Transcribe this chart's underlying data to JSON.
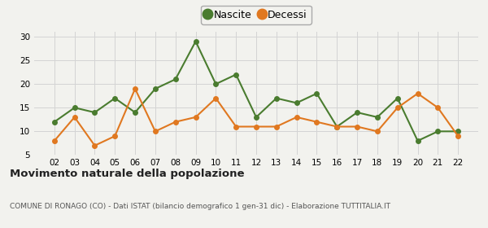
{
  "x_labels": [
    "02",
    "03",
    "04",
    "05",
    "06",
    "07",
    "08",
    "09",
    "10",
    "11",
    "12",
    "13",
    "14",
    "15",
    "16",
    "17",
    "18",
    "19",
    "20",
    "21",
    "22"
  ],
  "nascite": [
    12,
    15,
    14,
    17,
    14,
    19,
    21,
    29,
    20,
    22,
    13,
    17,
    16,
    18,
    11,
    14,
    13,
    17,
    8,
    10,
    10
  ],
  "decessi": [
    8,
    13,
    7,
    9,
    19,
    10,
    12,
    13,
    17,
    11,
    11,
    11,
    13,
    12,
    11,
    11,
    10,
    15,
    18,
    15,
    9
  ],
  "nascite_color": "#4a7c2f",
  "decessi_color": "#e07820",
  "title": "Movimento naturale della popolazione",
  "subtitle": "COMUNE DI RONAGO (CO) - Dati ISTAT (bilancio demografico 1 gen-31 dic) - Elaborazione TUTTITALIA.IT",
  "legend_nascite": "Nascite",
  "legend_decessi": "Decessi",
  "ylim": [
    5,
    31
  ],
  "yticks": [
    5,
    10,
    15,
    20,
    25,
    30
  ],
  "background_color": "#f2f2ee",
  "grid_color": "#d4d4d4",
  "marker": "o",
  "marker_size": 4,
  "line_width": 1.5
}
